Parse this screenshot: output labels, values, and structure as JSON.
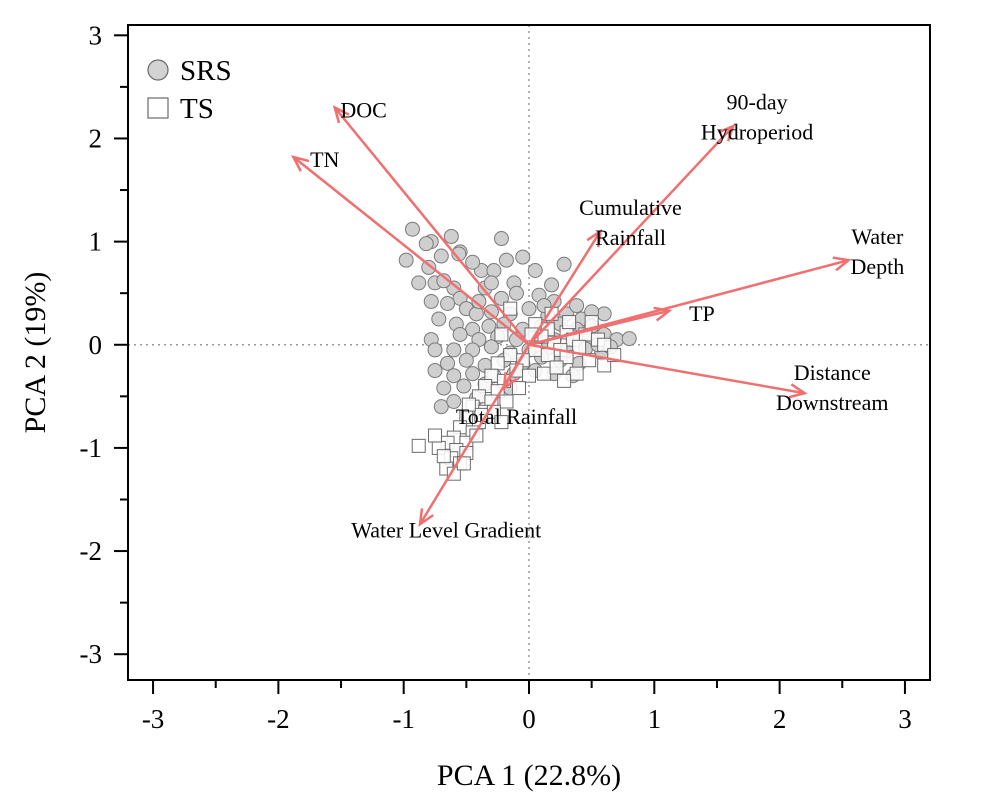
{
  "chart_data": {
    "type": "scatter",
    "subtype": "pca-biplot",
    "xlabel": "PCA 1 (22.8%)",
    "ylabel": "PCA 2 (19%)",
    "xlim": [
      -3.2,
      3.2
    ],
    "ylim": [
      -3.25,
      3.1
    ],
    "xticks": [
      -3,
      -2,
      -1,
      0,
      1,
      2,
      3
    ],
    "yticks": [
      -3,
      -2,
      -1,
      0,
      1,
      2,
      3
    ],
    "tick_labels_x": [
      "-3",
      "-2",
      "-1",
      "0",
      "1",
      "2",
      "3"
    ],
    "tick_labels_y": [
      "-3",
      "-2",
      "-1",
      "0",
      "1",
      "2",
      "3"
    ],
    "zero_lines": true,
    "grid": false,
    "legend": {
      "position": "top-left",
      "entries": [
        {
          "label": "SRS",
          "marker": "circle",
          "fill": "#d3d3d3"
        },
        {
          "label": "TS",
          "marker": "square",
          "fill": "#ffffff"
        }
      ]
    },
    "vector_color": "#f07070",
    "vectors": [
      {
        "name": "DOC",
        "lines": [
          "DOC"
        ],
        "x": -1.55,
        "y": 2.3,
        "lx": -1.32,
        "ly": 2.28,
        "anchor": "middle"
      },
      {
        "name": "TN",
        "lines": [
          "TN"
        ],
        "x": -1.88,
        "y": 1.82,
        "lx": -1.63,
        "ly": 1.8,
        "anchor": "middle"
      },
      {
        "name": "90-day Hydroperiod",
        "lines": [
          "90-day",
          "Hydroperiod"
        ],
        "x": 1.63,
        "y": 2.12,
        "lx": 1.82,
        "ly": 2.24,
        "anchor": "middle"
      },
      {
        "name": "Cumulative Rainfall",
        "lines": [
          "Cumulative",
          "Rainfall"
        ],
        "x": 0.57,
        "y": 1.1,
        "lx": 0.81,
        "ly": 1.22,
        "anchor": "middle"
      },
      {
        "name": "Water Depth",
        "lines": [
          "Water",
          "Depth"
        ],
        "x": 2.55,
        "y": 0.82,
        "lx": 2.78,
        "ly": 0.94,
        "anchor": "middle"
      },
      {
        "name": "TP",
        "lines": [
          "TP"
        ],
        "x": 1.12,
        "y": 0.33,
        "lx": 1.38,
        "ly": 0.31,
        "anchor": "middle"
      },
      {
        "name": "Distance Downstream",
        "lines": [
          "Distance",
          "Downstream"
        ],
        "x": 2.2,
        "y": -0.47,
        "lx": 2.42,
        "ly": -0.38,
        "anchor": "middle"
      },
      {
        "name": "Total Rainfall",
        "lines": [
          "Total Rainfall"
        ],
        "x": -0.2,
        "y": -0.42,
        "lx": -0.1,
        "ly": -0.69,
        "anchor": "middle"
      },
      {
        "name": "Water Level Gradient",
        "lines": [
          "Water Level Gradient"
        ],
        "x": -0.87,
        "y": -1.74,
        "lx": -0.66,
        "ly": -1.79,
        "anchor": "middle"
      }
    ],
    "series": [
      {
        "name": "SRS",
        "marker": "circle",
        "points": [
          [
            -0.93,
            1.12
          ],
          [
            -0.78,
            1.0
          ],
          [
            -0.62,
            1.05
          ],
          [
            -0.22,
            1.03
          ],
          [
            -0.55,
            0.9
          ],
          [
            -0.7,
            0.86
          ],
          [
            -0.56,
            0.88
          ],
          [
            -0.38,
            0.72
          ],
          [
            -0.8,
            0.75
          ],
          [
            -0.75,
            0.6
          ],
          [
            -0.98,
            0.82
          ],
          [
            -0.45,
            0.8
          ],
          [
            -0.28,
            0.72
          ],
          [
            -0.12,
            0.6
          ],
          [
            0.05,
            0.72
          ],
          [
            0.28,
            0.78
          ],
          [
            -0.6,
            0.55
          ],
          [
            -0.68,
            0.62
          ],
          [
            -0.55,
            0.45
          ],
          [
            -0.35,
            0.55
          ],
          [
            -0.22,
            0.45
          ],
          [
            -0.1,
            0.5
          ],
          [
            0.08,
            0.48
          ],
          [
            0.2,
            0.42
          ],
          [
            -0.78,
            0.42
          ],
          [
            -0.65,
            0.4
          ],
          [
            -0.5,
            0.35
          ],
          [
            -0.42,
            0.3
          ],
          [
            -0.3,
            0.32
          ],
          [
            -0.15,
            0.3
          ],
          [
            0.0,
            0.35
          ],
          [
            0.15,
            0.28
          ],
          [
            0.3,
            0.3
          ],
          [
            0.42,
            0.25
          ],
          [
            -0.72,
            0.25
          ],
          [
            -0.58,
            0.2
          ],
          [
            -0.45,
            0.15
          ],
          [
            -0.32,
            0.18
          ],
          [
            -0.2,
            0.2
          ],
          [
            -0.05,
            0.15
          ],
          [
            0.1,
            0.18
          ],
          [
            0.25,
            0.2
          ],
          [
            0.38,
            0.15
          ],
          [
            0.5,
            0.18
          ],
          [
            -0.55,
            0.1
          ],
          [
            -0.4,
            0.05
          ],
          [
            -0.25,
            0.08
          ],
          [
            -0.1,
            0.05
          ],
          [
            0.05,
            0.08
          ],
          [
            0.2,
            0.05
          ],
          [
            0.35,
            0.08
          ],
          [
            0.48,
            0.06
          ],
          [
            0.6,
            0.1
          ],
          [
            0.7,
            0.05
          ],
          [
            -0.6,
            -0.05
          ],
          [
            -0.45,
            -0.05
          ],
          [
            -0.3,
            -0.02
          ],
          [
            -0.15,
            -0.08
          ],
          [
            0.0,
            -0.05
          ],
          [
            0.15,
            -0.03
          ],
          [
            0.3,
            -0.06
          ],
          [
            0.45,
            -0.04
          ],
          [
            0.58,
            -0.08
          ],
          [
            -0.65,
            -0.18
          ],
          [
            -0.5,
            -0.15
          ],
          [
            -0.35,
            -0.2
          ],
          [
            -0.2,
            -0.15
          ],
          [
            -0.05,
            -0.18
          ],
          [
            0.1,
            -0.12
          ],
          [
            0.25,
            -0.15
          ],
          [
            0.4,
            -0.18
          ],
          [
            -0.75,
            -0.25
          ],
          [
            -0.6,
            -0.3
          ],
          [
            -0.45,
            -0.28
          ],
          [
            -0.28,
            -0.3
          ],
          [
            -0.12,
            -0.28
          ],
          [
            0.05,
            -0.25
          ],
          [
            0.2,
            -0.28
          ],
          [
            0.35,
            -0.3
          ],
          [
            -0.68,
            -0.42
          ],
          [
            -0.52,
            -0.4
          ],
          [
            -0.35,
            -0.38
          ],
          [
            -0.15,
            -0.42
          ],
          [
            -0.7,
            -0.6
          ],
          [
            -0.6,
            -0.55
          ],
          [
            -0.42,
            -0.52
          ],
          [
            -0.78,
            0.05
          ],
          [
            -0.75,
            -0.05
          ],
          [
            0.6,
            0.3
          ],
          [
            0.8,
            0.06
          ],
          [
            0.5,
            0.32
          ],
          [
            0.38,
            0.38
          ],
          [
            0.18,
            0.58
          ],
          [
            -0.05,
            0.85
          ],
          [
            -0.88,
            0.6
          ],
          [
            -0.3,
            0.6
          ],
          [
            -0.4,
            0.42
          ],
          [
            0.55,
            0.0
          ],
          [
            0.65,
            -0.02
          ],
          [
            -0.18,
            0.82
          ],
          [
            -0.82,
            0.98
          ],
          [
            0.12,
            0.38
          ]
        ]
      },
      {
        "name": "TS",
        "marker": "square",
        "points": [
          [
            0.05,
            0.2
          ],
          [
            0.15,
            0.15
          ],
          [
            0.3,
            0.12
          ],
          [
            0.45,
            0.1
          ],
          [
            0.55,
            0.05
          ],
          [
            0.35,
            0.05
          ],
          [
            0.2,
            0.02
          ],
          [
            0.1,
            0.08
          ],
          [
            0.4,
            -0.02
          ],
          [
            0.25,
            -0.05
          ],
          [
            0.05,
            -0.05
          ],
          [
            0.15,
            -0.1
          ],
          [
            0.3,
            -0.12
          ],
          [
            0.48,
            -0.15
          ],
          [
            0.6,
            -0.2
          ],
          [
            -0.05,
            -0.15
          ],
          [
            -0.15,
            -0.1
          ],
          [
            -0.25,
            -0.18
          ],
          [
            -0.1,
            -0.25
          ],
          [
            0.0,
            -0.3
          ],
          [
            0.12,
            -0.28
          ],
          [
            0.22,
            -0.22
          ],
          [
            -0.3,
            -0.3
          ],
          [
            -0.2,
            -0.35
          ],
          [
            -0.35,
            -0.4
          ],
          [
            -0.25,
            -0.45
          ],
          [
            -0.4,
            -0.5
          ],
          [
            -0.3,
            -0.55
          ],
          [
            -0.45,
            -0.6
          ],
          [
            -0.35,
            -0.65
          ],
          [
            -0.5,
            -0.7
          ],
          [
            -0.4,
            -0.75
          ],
          [
            -0.55,
            -0.8
          ],
          [
            -0.45,
            -0.85
          ],
          [
            -0.6,
            -0.9
          ],
          [
            -0.5,
            -0.95
          ],
          [
            -0.65,
            -0.95
          ],
          [
            -0.72,
            -1.0
          ],
          [
            -0.58,
            -1.02
          ],
          [
            -0.5,
            -1.05
          ],
          [
            -0.62,
            -1.1
          ],
          [
            -0.55,
            -1.15
          ],
          [
            -0.66,
            -1.2
          ],
          [
            -0.6,
            -1.25
          ],
          [
            -0.88,
            -0.98
          ],
          [
            -0.75,
            -0.88
          ],
          [
            -0.68,
            -1.08
          ],
          [
            -0.52,
            -1.15
          ],
          [
            -0.42,
            -0.88
          ],
          [
            -0.38,
            -0.68
          ],
          [
            -0.18,
            -0.55
          ],
          [
            -0.08,
            -0.42
          ],
          [
            0.32,
            0.22
          ],
          [
            0.5,
            0.22
          ],
          [
            0.18,
            0.3
          ],
          [
            -0.22,
            0.1
          ],
          [
            0.6,
            0.0
          ],
          [
            0.68,
            -0.1
          ],
          [
            -0.15,
            0.35
          ],
          [
            0.02,
            0.1
          ],
          [
            0.38,
            -0.28
          ],
          [
            0.28,
            -0.35
          ],
          [
            -0.28,
            -0.65
          ],
          [
            -0.22,
            -0.75
          ],
          [
            -0.48,
            -0.58
          ]
        ]
      }
    ]
  }
}
